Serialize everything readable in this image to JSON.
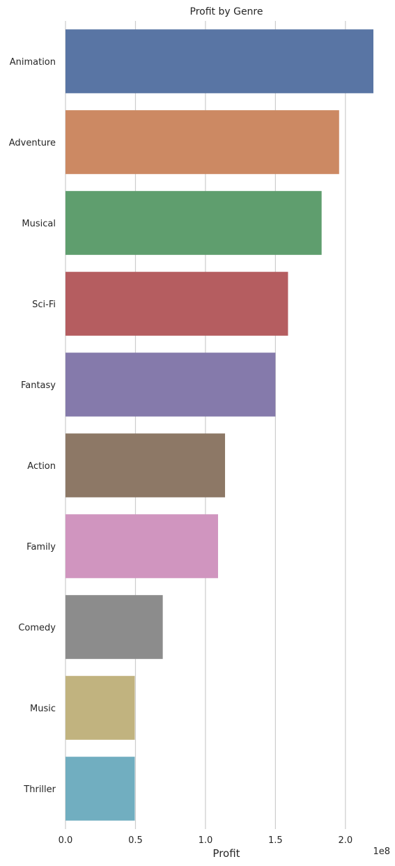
{
  "chart_data": {
    "type": "bar",
    "orientation": "horizontal",
    "title": "Profit by Genre",
    "xlabel": "Profit",
    "ylabel": "",
    "x_offset_label": "1e8",
    "xlim": [
      0,
      220000000
    ],
    "x_ticks": [
      0,
      50000000,
      100000000,
      150000000,
      200000000
    ],
    "x_tick_labels": [
      "0.0",
      "0.5",
      "1.0",
      "1.5",
      "2.0"
    ],
    "grid": "vertical",
    "categories": [
      "Animation",
      "Adventure",
      "Musical",
      "Sci-Fi",
      "Fantasy",
      "Action",
      "Family",
      "Comedy",
      "Music",
      "Thriller"
    ],
    "values": [
      220000000,
      195500000,
      183000000,
      159000000,
      150000000,
      114000000,
      109000000,
      69500000,
      49500000,
      49500000
    ],
    "colors": [
      "#5975A4",
      "#CC8963",
      "#5F9E6E",
      "#B55D60",
      "#857AAB",
      "#8D7866",
      "#D095BF",
      "#8C8C8C",
      "#C1B37F",
      "#71AEC0"
    ]
  }
}
